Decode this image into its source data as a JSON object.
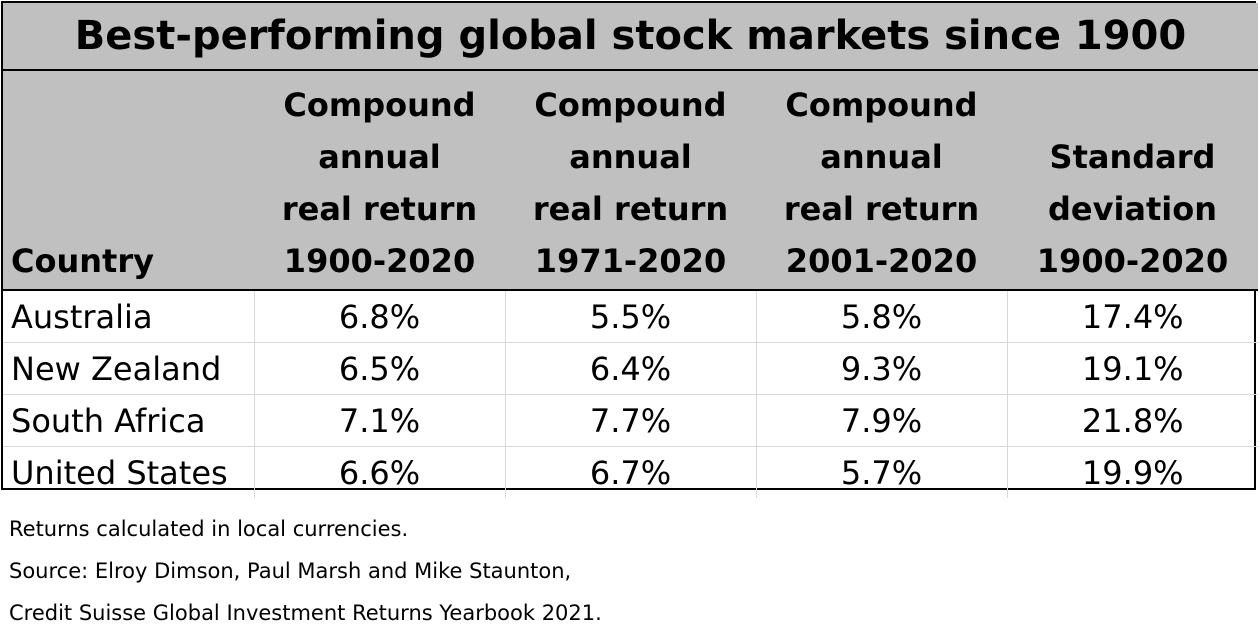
{
  "chart_data": {
    "type": "table",
    "title": "Best-performing global stock markets since 1900",
    "columns": [
      {
        "lines": [
          "Country"
        ]
      },
      {
        "lines": [
          "Compound",
          "annual",
          "real return",
          "1900-2020"
        ]
      },
      {
        "lines": [
          "Compound",
          "annual",
          "real return",
          "1971-2020"
        ]
      },
      {
        "lines": [
          "Compound",
          "annual",
          "real return",
          "2001-2020"
        ]
      },
      {
        "lines": [
          "Standard",
          "deviation",
          "1900-2020"
        ]
      }
    ],
    "rows": [
      {
        "country": "Australia",
        "values": [
          "6.8%",
          "5.5%",
          "5.8%",
          "17.4%"
        ]
      },
      {
        "country": "New Zealand",
        "values": [
          "6.5%",
          "6.4%",
          "9.3%",
          "19.1%"
        ]
      },
      {
        "country": "South Africa",
        "values": [
          "7.1%",
          "7.7%",
          "7.9%",
          "21.8%"
        ]
      },
      {
        "country": "United States",
        "values": [
          "6.6%",
          "6.7%",
          "5.7%",
          "19.9%"
        ]
      }
    ]
  },
  "notes": [
    "Returns calculated in local currencies.",
    "Source: Elroy Dimson, Paul Marsh and Mike Staunton,",
    "Credit Suisse Global Investment Returns Yearbook 2021."
  ],
  "colors": {
    "header_background": "#c0c0c0",
    "border": "#000000",
    "cell_grid": "#d9d9d9"
  }
}
